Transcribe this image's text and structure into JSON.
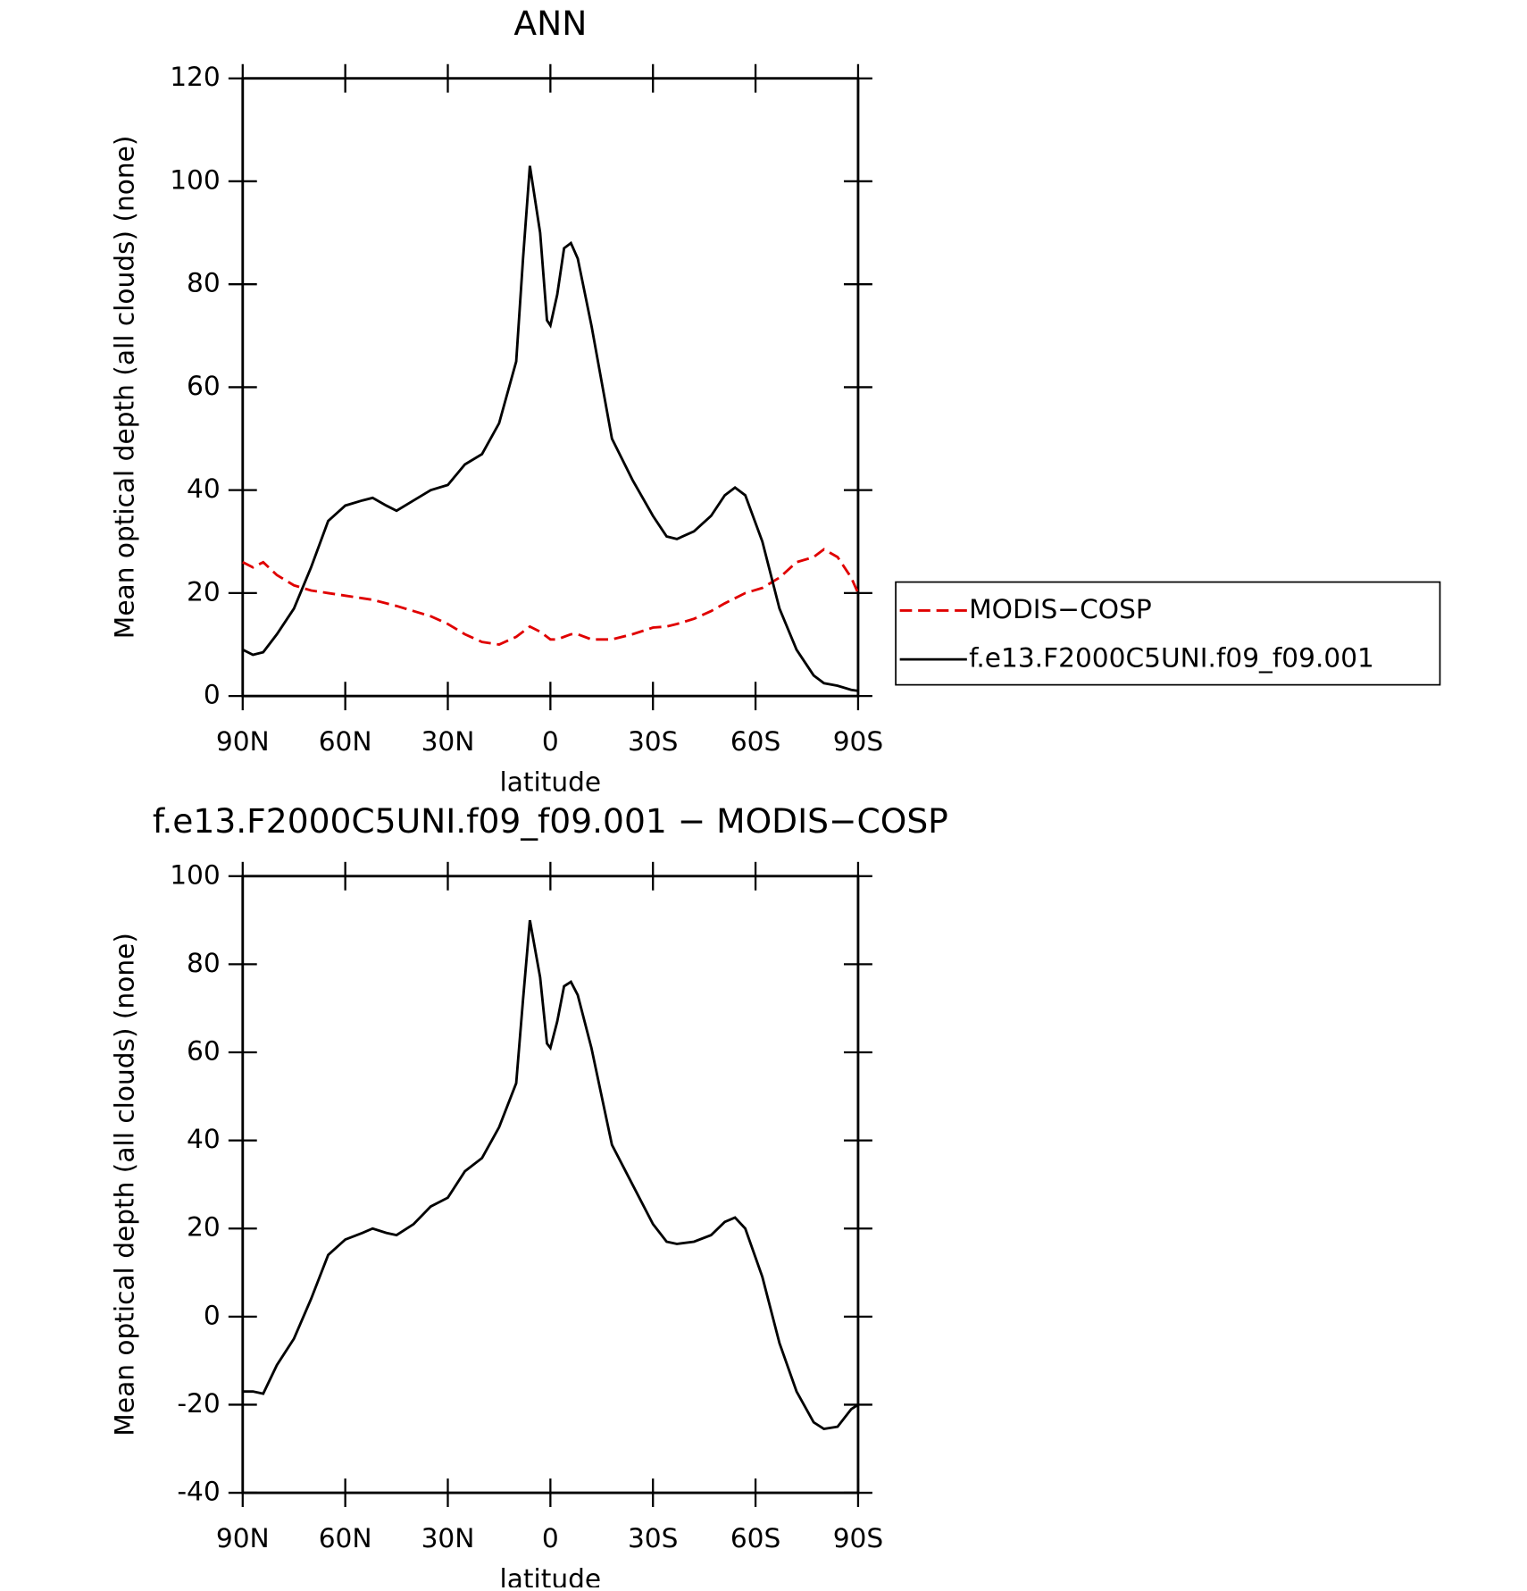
{
  "chart_data": [
    {
      "type": "line",
      "title": "ANN",
      "x_label": "latitude",
      "y_label": "Mean optical depth (all clouds) (none)",
      "x": [
        90,
        87,
        84,
        80,
        75,
        70,
        65,
        60,
        55,
        52,
        48,
        45,
        40,
        35,
        30,
        25,
        20,
        15,
        10,
        8,
        6,
        3,
        1,
        0,
        -2,
        -4,
        -6,
        -8,
        -12,
        -18,
        -24,
        -30,
        -34,
        -37,
        -42,
        -47,
        -51,
        -54,
        -57,
        -62,
        -67,
        -72,
        -77,
        -80,
        -84,
        -88,
        -90
      ],
      "xlim": [
        90,
        -90
      ],
      "xticks": [
        {
          "value": 90,
          "label": "90N"
        },
        {
          "value": 60,
          "label": "60N"
        },
        {
          "value": 30,
          "label": "30N"
        },
        0,
        {
          "value": -30,
          "label": "30S"
        },
        {
          "value": -60,
          "label": "60S"
        },
        {
          "value": -90,
          "label": "90S"
        }
      ],
      "ylim": [
        0,
        120
      ],
      "yticks": [
        0,
        20,
        40,
        60,
        80,
        100,
        120
      ],
      "legend": "outside-right",
      "series": [
        {
          "name": "MODIS−COSP",
          "color": "#e00000",
          "dash": "dashed",
          "values": [
            26,
            25,
            26,
            23.5,
            21.5,
            20.5,
            20,
            19.5,
            19,
            18.7,
            18,
            17.5,
            16.5,
            15.5,
            14,
            12,
            10.5,
            10,
            11.5,
            12.5,
            13.5,
            12.5,
            11.5,
            11,
            11,
            11.5,
            12,
            12,
            11,
            11,
            12,
            13.3,
            13.5,
            14,
            15,
            16.5,
            18,
            19,
            20,
            21,
            23,
            26,
            27,
            28.5,
            27,
            23,
            20
          ]
        },
        {
          "name": "f.e13.F2000C5UNI.f09_f09.001",
          "color": "#000000",
          "dash": "solid",
          "values": [
            9,
            8,
            8.5,
            12,
            17,
            25,
            34,
            37,
            38,
            38.5,
            37,
            36,
            38,
            40,
            41,
            45,
            47,
            53,
            65,
            85,
            103,
            90,
            73,
            72,
            78,
            87,
            88,
            85,
            72,
            50,
            42,
            35,
            31,
            30.5,
            32,
            35,
            39,
            40.5,
            39,
            30,
            17,
            9,
            4,
            2.5,
            2,
            1.2,
            1
          ]
        }
      ]
    },
    {
      "type": "line",
      "title": "f.e13.F2000C5UNI.f09_f09.001 − MODIS−COSP",
      "x_label": "latitude",
      "y_label": "Mean optical depth (all clouds) (none)",
      "x": [
        90,
        87,
        84,
        80,
        75,
        70,
        65,
        60,
        55,
        52,
        48,
        45,
        40,
        35,
        30,
        25,
        20,
        15,
        10,
        8,
        6,
        3,
        1,
        0,
        -2,
        -4,
        -6,
        -8,
        -12,
        -18,
        -24,
        -30,
        -34,
        -37,
        -42,
        -47,
        -51,
        -54,
        -57,
        -62,
        -67,
        -72,
        -77,
        -80,
        -84,
        -88,
        -90
      ],
      "xlim": [
        90,
        -90
      ],
      "xticks": [
        {
          "value": 90,
          "label": "90N"
        },
        {
          "value": 60,
          "label": "60N"
        },
        {
          "value": 30,
          "label": "30N"
        },
        0,
        {
          "value": -30,
          "label": "30S"
        },
        {
          "value": -60,
          "label": "60S"
        },
        {
          "value": -90,
          "label": "90S"
        }
      ],
      "ylim": [
        -40,
        100
      ],
      "yticks": [
        -40,
        -20,
        0,
        20,
        40,
        60,
        80,
        100
      ],
      "series": [
        {
          "color": "#000000",
          "dash": "solid",
          "values": [
            -17,
            -17,
            -17.5,
            -11,
            -5,
            4,
            14,
            17.5,
            19,
            20,
            19,
            18.5,
            21,
            25,
            27,
            33,
            36,
            43,
            53,
            72,
            90,
            77,
            62,
            61,
            67,
            75,
            76,
            73,
            61,
            39,
            30,
            21,
            17,
            16.5,
            17,
            18.5,
            21.5,
            22.5,
            20,
            9,
            -6,
            -17,
            -24,
            -25.5,
            -25,
            -21,
            -20
          ]
        }
      ]
    }
  ]
}
